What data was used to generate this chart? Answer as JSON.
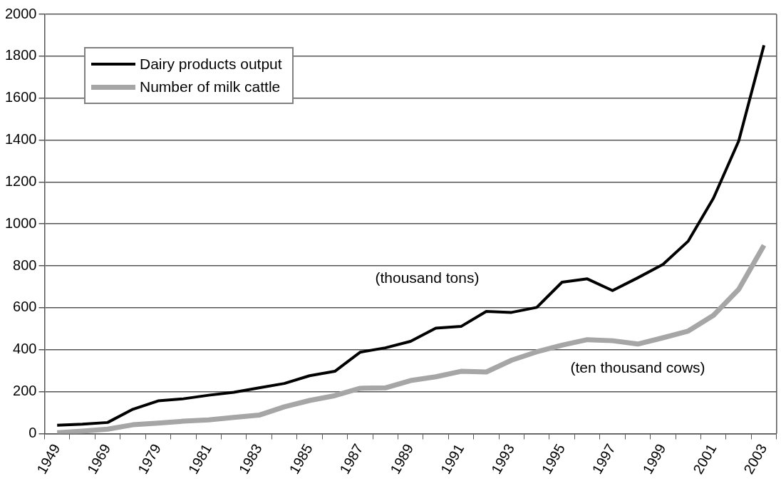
{
  "chart_data": {
    "type": "line",
    "categories": [
      "1949",
      null,
      "1969",
      null,
      "1979",
      null,
      "1981",
      null,
      "1983",
      null,
      "1985",
      null,
      "1987",
      null,
      "1989",
      null,
      "1991",
      null,
      "1993",
      null,
      "1995",
      null,
      "1997",
      null,
      "1999",
      null,
      "2001",
      null,
      "2003"
    ],
    "series": [
      {
        "name": "Dairy products output",
        "color": "#000000",
        "values": [
          40,
          45,
          53,
          116,
          156,
          166,
          183,
          197,
          218,
          239,
          276,
          297,
          388,
          409,
          440,
          503,
          511,
          583,
          578,
          602,
          722,
          738,
          682,
          743,
          807,
          918,
          1123,
          1396,
          1852
        ]
      },
      {
        "name": "Number of milk cattle",
        "color": "#a6a6a6",
        "values": [
          4,
          12,
          21,
          42,
          50,
          59,
          65,
          77,
          88,
          128,
          158,
          181,
          216,
          218,
          253,
          271,
          297,
          294,
          350,
          390,
          422,
          448,
          443,
          427,
          457,
          489,
          564,
          688,
          898
        ]
      }
    ],
    "ylim": [
      0,
      2000
    ],
    "yticks": [
      0,
      200,
      400,
      600,
      800,
      1000,
      1200,
      1400,
      1600,
      1800,
      2000
    ],
    "grid": "y",
    "legend": "top left",
    "marker": "none",
    "line_style": "solid",
    "annotations": [
      "(thousand tons)",
      "(ten thousand cows)"
    ]
  }
}
